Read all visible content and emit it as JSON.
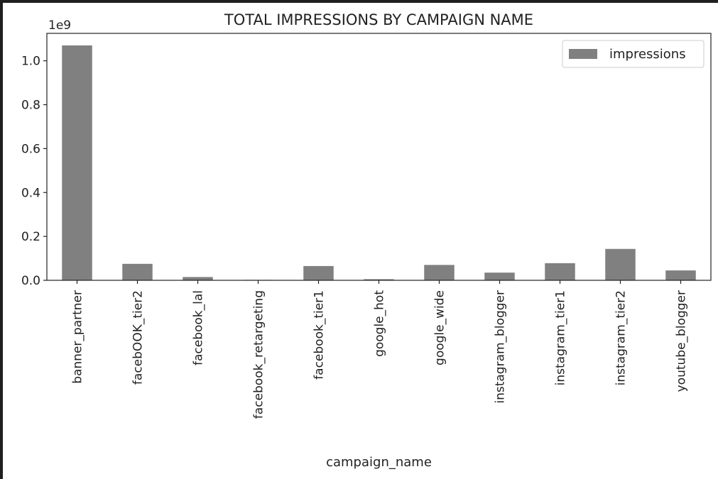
{
  "chart_data": {
    "type": "bar",
    "title": "TOTAL IMPRESSIONS BY CAMPAIGN NAME",
    "xlabel": "campaign_name",
    "ylabel": "",
    "y_offset_label": "1e9",
    "categories": [
      "banner_partner",
      "facebOOK_tier2",
      "facebook_lal",
      "facebook_retargeting",
      "facebook_tier1",
      "google_hot",
      "google_wide",
      "instagram_blogger",
      "instagram_tier1",
      "instagram_tier2",
      "youtube_blogger"
    ],
    "series": [
      {
        "name": "impressions",
        "color": "#808080",
        "values": [
          1070000000,
          75000000,
          15000000,
          2000000,
          65000000,
          5000000,
          70000000,
          35000000,
          78000000,
          143000000,
          45000000
        ]
      }
    ],
    "ylim": [
      0,
      1.125
    ],
    "y_scale_factor": 1000000000,
    "yticks": [
      "0.0",
      "0.2",
      "0.4",
      "0.6",
      "0.8",
      "1.0"
    ],
    "legend_position": "upper right",
    "grid": false
  }
}
